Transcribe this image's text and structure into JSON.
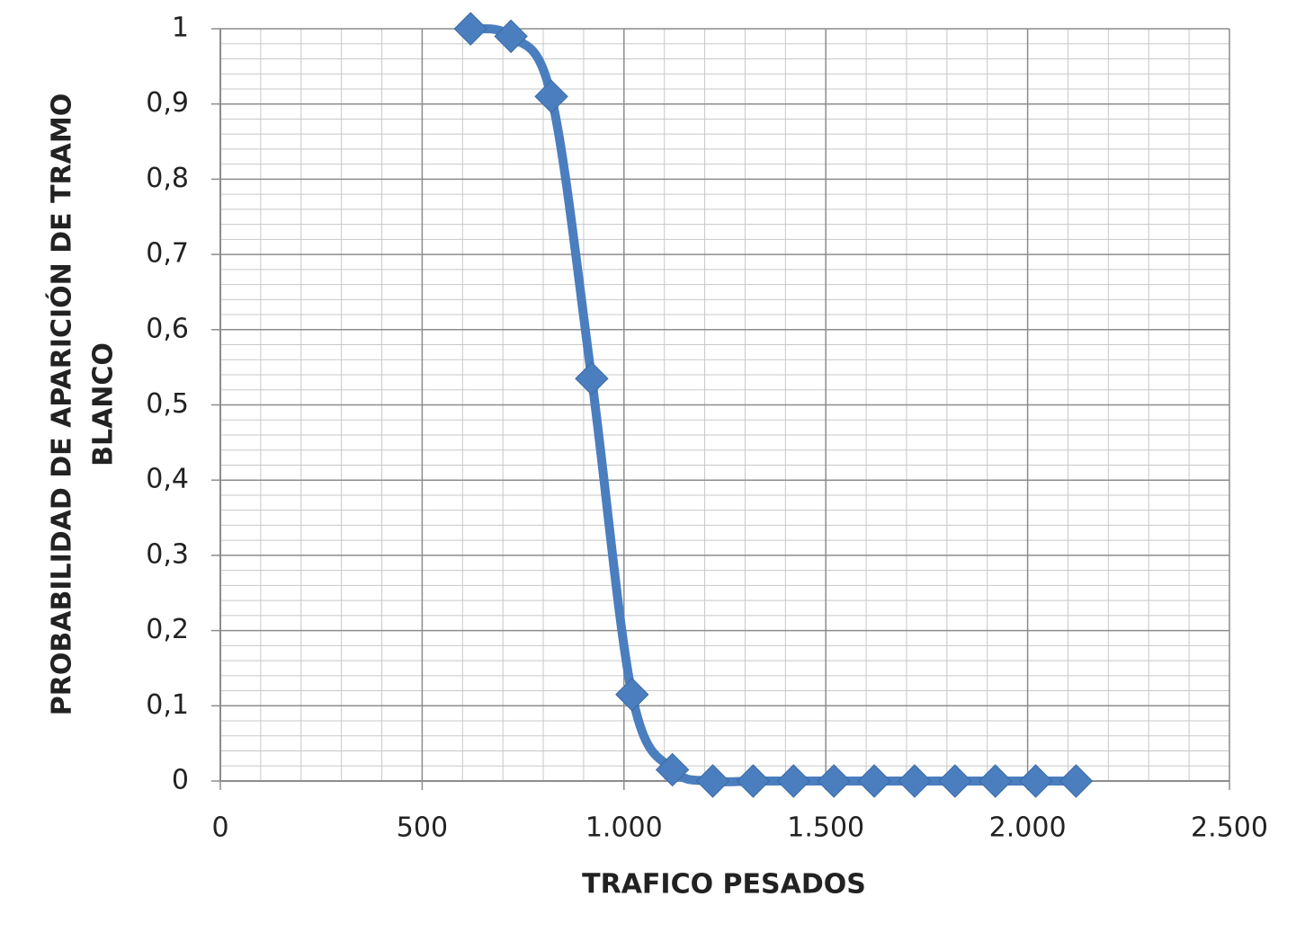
{
  "chart_data": {
    "type": "line",
    "xlabel": "TRAFICO PESADOS",
    "ylabel": [
      "PROBABILIDAD DE APARICIÓN DE TRAMO",
      "BLANCO"
    ],
    "x": [
      620,
      720,
      820,
      920,
      1020,
      1120,
      1220,
      1320,
      1420,
      1520,
      1620,
      1720,
      1820,
      1920,
      2020,
      2120
    ],
    "series": [
      {
        "color": "#4a7ebf",
        "values": [
          1,
          0.99,
          0.91,
          0.535,
          0.115,
          0.015,
          0,
          0,
          0,
          0,
          0,
          0,
          0,
          0,
          0,
          0
        ]
      }
    ],
    "xlim": [
      0,
      2500
    ],
    "xticks": [
      0,
      500,
      {
        "value": 1000,
        "label": "1.000"
      },
      {
        "value": 1500,
        "label": "1.500"
      },
      {
        "value": 2000,
        "label": "2.000"
      },
      {
        "value": 2500,
        "label": "2.500"
      }
    ],
    "ylim": [
      0,
      1
    ],
    "yticks": [
      0,
      {
        "value": 0.1,
        "label": "0,1"
      },
      {
        "value": 0.2,
        "label": "0,2"
      },
      {
        "value": 0.3,
        "label": "0,3"
      },
      {
        "value": 0.4,
        "label": "0,4"
      },
      {
        "value": 0.5,
        "label": "0,5"
      },
      {
        "value": 0.6,
        "label": "0,6"
      },
      {
        "value": 0.7,
        "label": "0,7"
      },
      {
        "value": 0.8,
        "label": "0,8"
      },
      {
        "value": 0.9,
        "label": "0,9"
      },
      1
    ],
    "grid": true,
    "minor_grid": {
      "x": 5,
      "y": 5
    },
    "smooth": true,
    "marker": "diamond"
  }
}
